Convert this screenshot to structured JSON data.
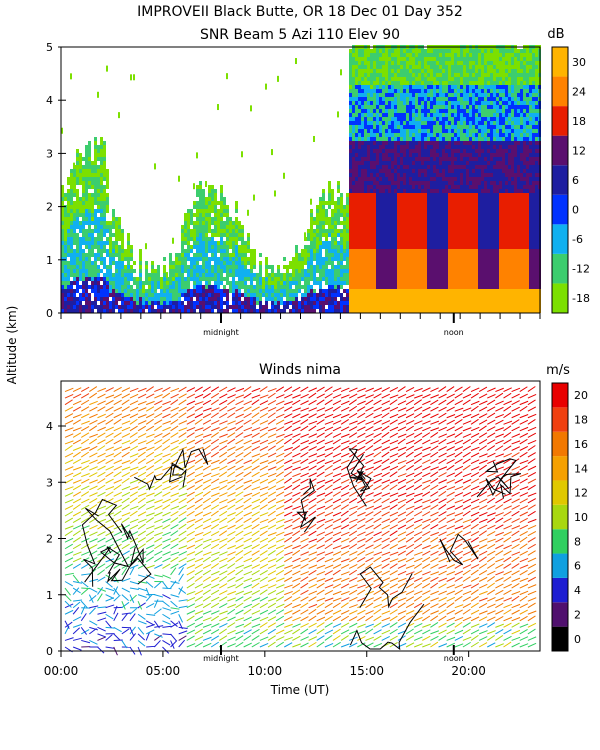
{
  "figure": {
    "title_line1": "IMPROVEII  Black Butte, OR  18 Dec 01 Day 352",
    "title_line2": "SNR Beam 5 Azi 110 Elev 90",
    "shared_ylabel": "Altitude (km)"
  },
  "chart_data": [
    {
      "type": "heatmap",
      "title": "SNR Beam 5 Azi 110 Elev 90",
      "ylabel": "Altitude (km)",
      "ylim": [
        0,
        5
      ],
      "yticks": [
        "0",
        "1",
        "2",
        "3",
        "4",
        "5"
      ],
      "x_markers": [
        "midnight",
        "noon"
      ],
      "colorbar": {
        "unit": "dB",
        "ticks": [
          "30",
          "24",
          "18",
          "12",
          "6",
          "0",
          "-6",
          "-12",
          "-18"
        ],
        "colors": [
          "#ffb400",
          "#ff8200",
          "#e81e00",
          "#5a0f6e",
          "#1e1ea0",
          "#0032ff",
          "#10b0f0",
          "#3ccd6e",
          "#7ce000"
        ]
      }
    },
    {
      "type": "heatmap",
      "subtype": "wind-barbs",
      "title": "Winds nima",
      "ylabel": "Altitude (km)",
      "ylim": [
        0,
        4.8
      ],
      "yticks": [
        "0",
        "1",
        "2",
        "3",
        "4"
      ],
      "x": [
        "00:00",
        "05:00",
        "10:00",
        "15:00",
        "20:00"
      ],
      "xlabel": "Time (UT)",
      "x_markers": [
        "midnight",
        "noon"
      ],
      "colorbar": {
        "unit": "m/s",
        "ticks": [
          "20",
          "18",
          "16",
          "14",
          "12",
          "10",
          "8",
          "6",
          "4",
          "2",
          "0"
        ],
        "colors": [
          "#e80000",
          "#f04010",
          "#f27800",
          "#f5a000",
          "#e0c800",
          "#a8d810",
          "#30d060",
          "#10a0e0",
          "#1e1ed2",
          "#50106e",
          "#000000"
        ]
      }
    }
  ]
}
